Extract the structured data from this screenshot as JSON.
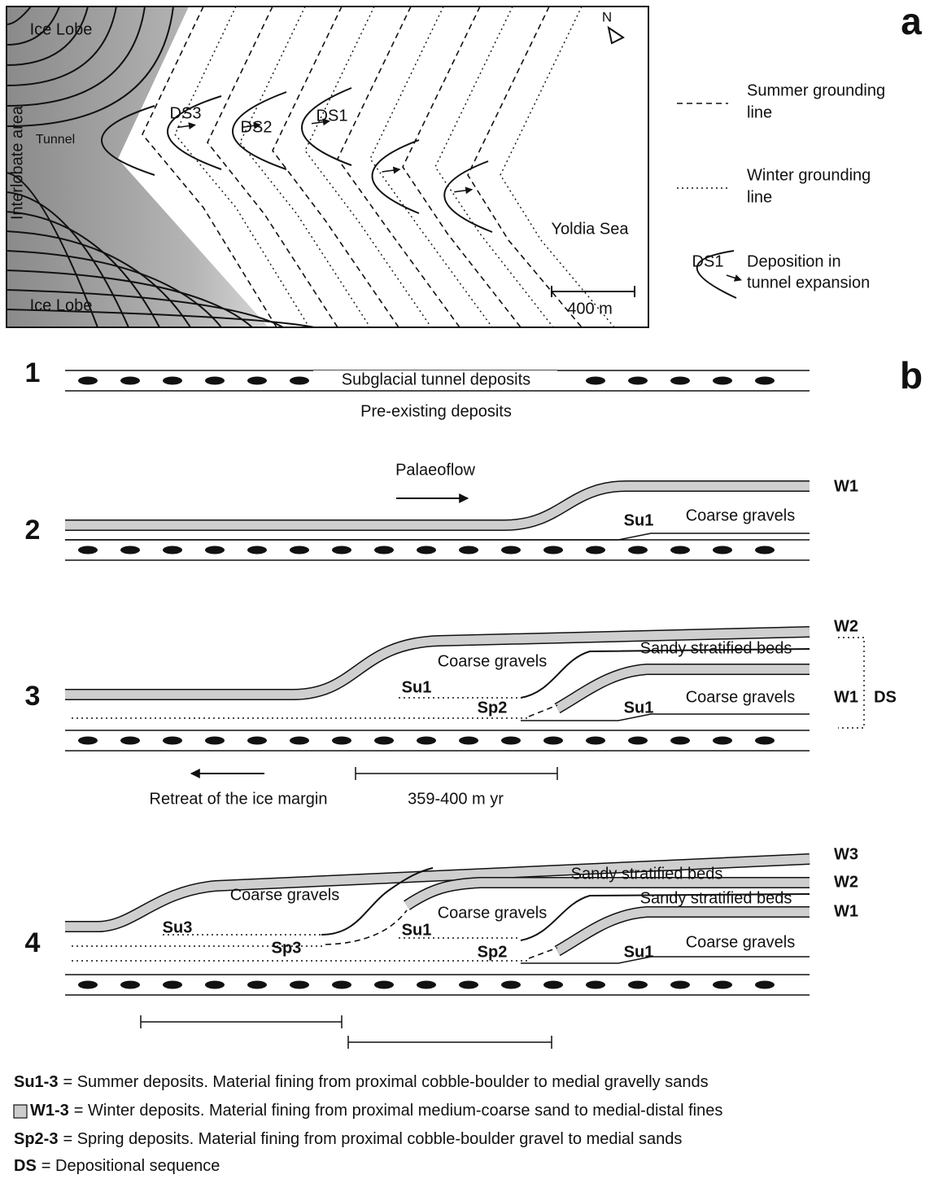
{
  "panel_a": {
    "label": "a",
    "north": "N",
    "ice_lobe_top": "Ice Lobe",
    "ice_lobe_bottom": "Ice Lobe",
    "interlobate": "Interlobate area",
    "tunnel": "Tunnel",
    "sequences": [
      "DS3",
      "DS2",
      "DS1"
    ],
    "sea": "Yoldia Sea",
    "scale": "400 m",
    "legend": [
      {
        "lines": [
          "Summer grounding",
          "line"
        ]
      },
      {
        "lines": [
          "Winter grounding",
          "line"
        ]
      },
      {
        "symbol": "DS1",
        "lines": [
          "Deposition in",
          "tunnel expansion"
        ]
      }
    ]
  },
  "panel_b": {
    "label": "b",
    "stages": [
      {
        "number": "1",
        "labels": [
          "Subglacial tunnel deposits",
          "Pre-existing deposits"
        ]
      },
      {
        "number": "2",
        "labels": [
          "Palaeoflow",
          "W1",
          "Su1",
          "Coarse gravels"
        ]
      },
      {
        "number": "3",
        "labels": [
          "W2",
          "Coarse gravels",
          "Sandy stratified beds",
          "W1",
          "DS",
          "Su1",
          "Sp2",
          "Su1",
          "Coarse gravels"
        ],
        "notes": [
          "Retreat of the ice margin",
          "359-400 m yr"
        ]
      },
      {
        "number": "4",
        "labels": [
          "W3",
          "Sandy stratified beds",
          "W2",
          "Coarse gravels",
          "Sandy stratified beds",
          "W1",
          "Su3",
          "Coarse gravels",
          "Sp3",
          "Su1",
          "Sp2",
          "Su1",
          "Coarse gravels"
        ]
      }
    ]
  },
  "captions": [
    {
      "term": "Su1-3",
      "text": "= Summer deposits.  Material fining from proximal cobble-boulder to medial gravelly sands"
    },
    {
      "term": "W1-3",
      "text": "= Winter deposits. Material fining from proximal medium-coarse sand to medial-distal fines"
    },
    {
      "term": "Sp2-3",
      "text": "= Spring deposits. Material fining from proximal cobble-boulder gravel to medial sands"
    },
    {
      "term": "DS",
      "text": "= Depositional sequence"
    }
  ]
}
